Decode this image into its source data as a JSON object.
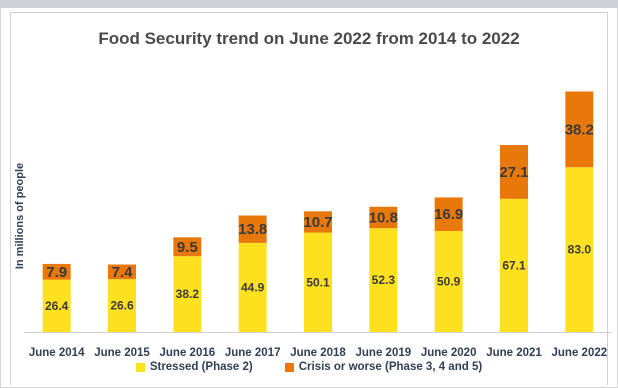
{
  "chart_data": {
    "type": "bar",
    "stacked": true,
    "title": "Food Security trend on June 2022 from 2014 to 2022",
    "xlabel": "",
    "ylabel": "In millions of people",
    "categories": [
      "June 2014",
      "June 2015",
      "June 2016",
      "June 2017",
      "June 2018",
      "June 2019",
      "June 2020",
      "June 2021",
      "June 2022"
    ],
    "series": [
      {
        "name": "Stressed (Phase 2)",
        "color": "#ffe11f",
        "values": [
          26.4,
          26.6,
          38.2,
          44.9,
          50.1,
          52.3,
          50.9,
          67.1,
          83.0
        ],
        "labels": [
          "26.4",
          "26.6",
          "38.2",
          "44.9",
          "50.1",
          "52.3",
          "50.9",
          "67.1",
          "83.0"
        ]
      },
      {
        "name": "Crisis or worse (Phase 3, 4 and 5)",
        "color": "#e8780a",
        "values": [
          7.9,
          7.4,
          9.5,
          13.8,
          10.7,
          10.8,
          16.9,
          27.1,
          38.2
        ],
        "labels": [
          "7.9",
          "7.4",
          "9.5",
          "13.8",
          "10.7",
          "10.8",
          "16.9",
          "27.1",
          "38.2"
        ]
      }
    ],
    "ylim": [
      0,
      131
    ],
    "grid": false,
    "legend_position": "bottom"
  }
}
